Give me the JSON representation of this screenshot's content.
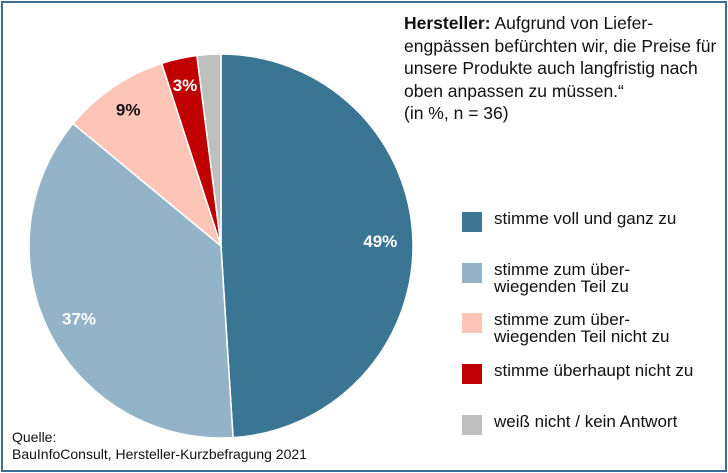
{
  "chart_data": {
    "type": "pie",
    "title_bold": "Hersteller:",
    "title": "Aufgrund von Liefer-engpässen befürchten wir, die Preise für unsere Produkte auch langfristig nach oben anpassen zu müssen.“",
    "subtitle": "(in %, n = 36)",
    "legend_position": "right",
    "slices": [
      {
        "name": "stimme voll und ganz zu",
        "value": 49,
        "label": "49%",
        "color": "#3a7593",
        "label_color": "#ffffff"
      },
      {
        "name": "stimme zum über-\nwiegenden Teil zu",
        "value": 37,
        "label": "37%",
        "color": "#93b3c9",
        "label_color": "#ffffff"
      },
      {
        "name": "stimme zum über-\nwiegenden Teil nicht zu",
        "value": 9,
        "label": "9%",
        "color": "#fcc5b8",
        "label_color": "#111111"
      },
      {
        "name": "stimme überhaupt nicht zu",
        "value": 3,
        "label": "3%",
        "color": "#c00000",
        "label_color": "#ffffff"
      },
      {
        "name": "weiß nicht / kein Antwort",
        "value": 2,
        "label": "",
        "color": "#bfbfbf",
        "label_color": "#111111"
      }
    ]
  },
  "source": {
    "line1": "Quelle:",
    "line2": "BauInfoConsult, Hersteller-Kurzbefragung 2021"
  }
}
